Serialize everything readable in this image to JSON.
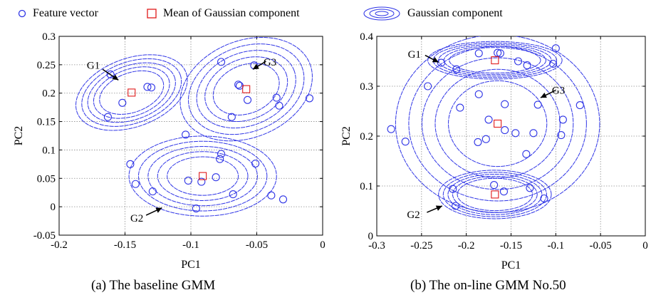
{
  "legend": {
    "feature_vector": "Feature vector",
    "mean": "Mean of Gaussian component",
    "component": "Gaussian component"
  },
  "captions": {
    "a": "(a) The baseline GMM",
    "b": "(b) The on-line GMM No.50"
  },
  "colors": {
    "data": "#2f35e6",
    "mean": "#e01a1a",
    "grid": "#8c8c8c"
  },
  "chart_data": [
    {
      "type": "scatter",
      "title": "",
      "xlabel": "PC1",
      "ylabel": "PC2",
      "xlim": [
        -0.2,
        0
      ],
      "ylim": [
        -0.05,
        0.3
      ],
      "xticks": [
        -0.2,
        -0.15,
        -0.1,
        -0.05,
        0
      ],
      "yticks": [
        -0.05,
        0,
        0.05,
        0.1,
        0.15,
        0.2,
        0.25,
        0.3
      ],
      "xtick_labels": [
        "-0.2",
        "-0.15",
        "-0.1",
        "-0.05",
        "0"
      ],
      "ytick_labels": [
        "-0.05",
        "0",
        "0.05",
        "0.1",
        "0.15",
        "0.2",
        "0.25",
        "0.3"
      ],
      "grid": true,
      "series": [
        {
          "name": "Feature vector",
          "marker": "circle",
          "points": [
            [
              -0.161,
              0.233
            ],
            [
              -0.152,
              0.183
            ],
            [
              -0.163,
              0.158
            ],
            [
              -0.133,
              0.211
            ],
            [
              -0.13,
              0.21
            ],
            [
              -0.077,
              0.255
            ],
            [
              -0.052,
              0.249
            ],
            [
              -0.063,
              0.213
            ],
            [
              -0.064,
              0.215
            ],
            [
              -0.057,
              0.188
            ],
            [
              -0.069,
              0.158
            ],
            [
              -0.035,
              0.192
            ],
            [
              -0.033,
              0.178
            ],
            [
              -0.01,
              0.191
            ],
            [
              -0.104,
              0.127
            ],
            [
              -0.146,
              0.075
            ],
            [
              -0.142,
              0.04
            ],
            [
              -0.129,
              0.027
            ],
            [
              -0.077,
              0.093
            ],
            [
              -0.078,
              0.084
            ],
            [
              -0.051,
              0.076
            ],
            [
              -0.092,
              0.044
            ],
            [
              -0.081,
              0.052
            ],
            [
              -0.102,
              0.046
            ],
            [
              -0.068,
              0.022
            ],
            [
              -0.096,
              -0.003
            ],
            [
              -0.039,
              0.02
            ],
            [
              -0.03,
              0.013
            ]
          ]
        },
        {
          "name": "Mean of Gaussian component",
          "marker": "square",
          "points": [
            [
              -0.145,
              0.201
            ],
            [
              -0.058,
              0.207
            ],
            [
              -0.091,
              0.054
            ]
          ]
        }
      ],
      "components": [
        {
          "label": "G1",
          "center": [
            -0.145,
            0.201
          ],
          "radii": [
            0.0253,
            0.044
          ],
          "ratio": 0.591,
          "angle": -20,
          "levels": 5
        },
        {
          "label": "G3",
          "center": [
            -0.058,
            0.207
          ],
          "radii": [
            0.026,
            0.052
          ],
          "ratio": 0.707,
          "angle": -22,
          "levels": 5
        },
        {
          "label": "G2",
          "center": [
            -0.091,
            0.054
          ],
          "radii": [
            0.027,
            0.056
          ],
          "ratio": 0.542,
          "angle": 0,
          "levels": 5
        }
      ],
      "annotations": [
        {
          "text": "G1",
          "text_at": [
            -0.174,
            0.249
          ],
          "arrow_from": [
            -0.167,
            0.242
          ],
          "arrow_to": [
            -0.155,
            0.223
          ]
        },
        {
          "text": "G3",
          "text_at": [
            -0.04,
            0.255
          ],
          "arrow_from": [
            -0.043,
            0.256
          ],
          "arrow_to": [
            -0.053,
            0.242
          ]
        },
        {
          "text": "G2",
          "text_at": [
            -0.141,
            -0.02
          ],
          "arrow_from": [
            -0.134,
            -0.015
          ],
          "arrow_to": [
            -0.122,
            -0.002
          ]
        }
      ]
    },
    {
      "type": "scatter",
      "title": "",
      "xlabel": "PC1",
      "ylabel": "PC2",
      "xlim": [
        -0.3,
        0
      ],
      "ylim": [
        0,
        0.4
      ],
      "xticks": [
        -0.3,
        -0.25,
        -0.2,
        -0.15,
        -0.1,
        -0.05,
        0
      ],
      "yticks": [
        0,
        0.1,
        0.2,
        0.3,
        0.4
      ],
      "xtick_labels": [
        "-0.3",
        "-0.25",
        "-0.2",
        "-0.15",
        "-0.1",
        "-0.05",
        "0"
      ],
      "ytick_labels": [
        "0",
        "0.1",
        "0.2",
        "0.3",
        "0.4"
      ],
      "grid": true,
      "series": [
        {
          "name": "Feature vector",
          "marker": "circle",
          "points": [
            [
              -0.228,
              0.347
            ],
            [
              -0.211,
              0.334
            ],
            [
              -0.186,
              0.366
            ],
            [
              -0.162,
              0.366
            ],
            [
              -0.165,
              0.367
            ],
            [
              -0.142,
              0.35
            ],
            [
              -0.132,
              0.342
            ],
            [
              -0.103,
              0.345
            ],
            [
              -0.1,
              0.376
            ],
            [
              -0.243,
              0.3
            ],
            [
              -0.284,
              0.214
            ],
            [
              -0.268,
              0.189
            ],
            [
              -0.186,
              0.284
            ],
            [
              -0.207,
              0.257
            ],
            [
              -0.157,
              0.264
            ],
            [
              -0.12,
              0.263
            ],
            [
              -0.073,
              0.262
            ],
            [
              -0.175,
              0.233
            ],
            [
              -0.157,
              0.212
            ],
            [
              -0.145,
              0.206
            ],
            [
              -0.125,
              0.206
            ],
            [
              -0.092,
              0.233
            ],
            [
              -0.094,
              0.202
            ],
            [
              -0.187,
              0.188
            ],
            [
              -0.178,
              0.194
            ],
            [
              -0.133,
              0.164
            ],
            [
              -0.215,
              0.094
            ],
            [
              -0.169,
              0.102
            ],
            [
              -0.158,
              0.089
            ],
            [
              -0.129,
              0.096
            ],
            [
              -0.113,
              0.075
            ],
            [
              -0.212,
              0.06
            ]
          ]
        },
        {
          "name": "Mean of Gaussian component",
          "marker": "square",
          "points": [
            [
              -0.168,
              0.352
            ],
            [
              -0.165,
              0.225
            ],
            [
              -0.168,
              0.083
            ]
          ]
        }
      ],
      "components": [
        {
          "label": "G1",
          "center": [
            -0.168,
            0.352
          ],
          "radii": [
            0.051,
            0.075
          ],
          "ratio": 0.28,
          "angle": 0,
          "levels": 5
        },
        {
          "label": "G3",
          "center": [
            -0.165,
            0.225
          ],
          "radii": [
            0.055,
            0.114
          ],
          "ratio": 0.87,
          "angle": 0,
          "levels": 5
        },
        {
          "label": "G2",
          "center": [
            -0.168,
            0.083
          ],
          "radii": [
            0.042,
            0.063
          ],
          "ratio": 0.43,
          "angle": 0,
          "levels": 5
        }
      ],
      "annotations": [
        {
          "text": "G1",
          "text_at": [
            -0.258,
            0.364
          ],
          "arrow_from": [
            -0.246,
            0.362
          ],
          "arrow_to": [
            -0.231,
            0.348
          ]
        },
        {
          "text": "G3",
          "text_at": [
            -0.097,
            0.292
          ],
          "arrow_from": [
            -0.1,
            0.292
          ],
          "arrow_to": [
            -0.117,
            0.277
          ]
        },
        {
          "text": "G2",
          "text_at": [
            -0.259,
            0.043
          ],
          "arrow_from": [
            -0.244,
            0.047
          ],
          "arrow_to": [
            -0.227,
            0.06
          ]
        }
      ]
    }
  ]
}
